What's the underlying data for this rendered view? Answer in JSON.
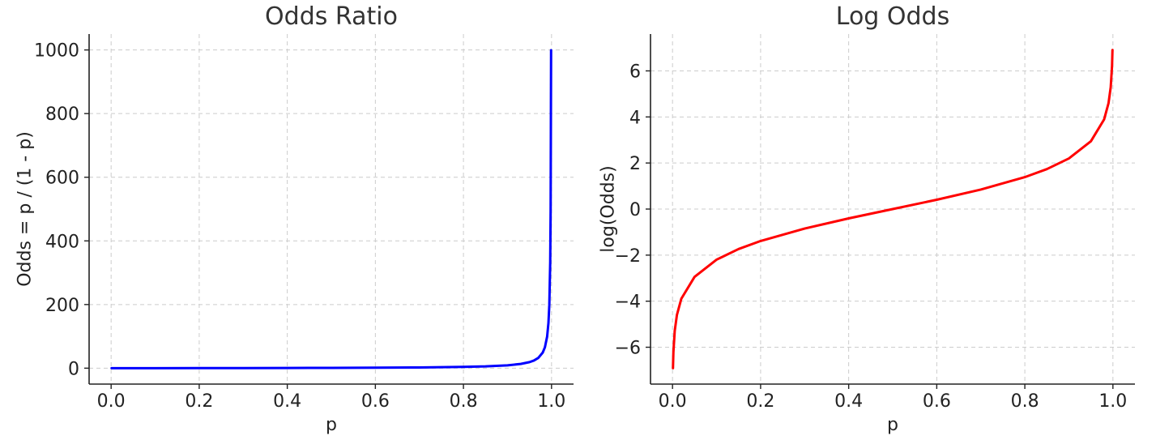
{
  "chart_data": [
    {
      "type": "line",
      "title": "Odds Ratio",
      "xlabel": "p",
      "ylabel": "Odds = p / (1 - p)",
      "xlim": [
        -0.05,
        1.05
      ],
      "ylim": [
        -50,
        1050
      ],
      "xticks": [
        0.0,
        0.2,
        0.4,
        0.6,
        0.8,
        1.0
      ],
      "xtick_labels": [
        "0.0",
        "0.2",
        "0.4",
        "0.6",
        "0.8",
        "1.0"
      ],
      "yticks": [
        0,
        200,
        400,
        600,
        800,
        1000
      ],
      "ytick_labels": [
        "0",
        "200",
        "400",
        "600",
        "800",
        "1000"
      ],
      "grid": true,
      "series": [
        {
          "color": "#0000ff",
          "x": [
            0.001,
            0.1,
            0.2,
            0.3,
            0.4,
            0.5,
            0.6,
            0.7,
            0.8,
            0.85,
            0.9,
            0.93,
            0.95,
            0.96,
            0.97,
            0.98,
            0.985,
            0.99,
            0.993,
            0.995,
            0.997,
            0.998,
            0.999
          ],
          "y": [
            0.001,
            0.111,
            0.25,
            0.429,
            0.667,
            1.0,
            1.5,
            2.333,
            4.0,
            5.667,
            9.0,
            13.29,
            19.0,
            24.0,
            32.33,
            49.0,
            65.67,
            99.0,
            141.86,
            199.0,
            332.33,
            499.0,
            999.0
          ]
        }
      ]
    },
    {
      "type": "line",
      "title": "Log Odds",
      "xlabel": "p",
      "ylabel": "log(Odds)",
      "xlim": [
        -0.05,
        1.05
      ],
      "ylim": [
        -7.6,
        7.6
      ],
      "xticks": [
        0.0,
        0.2,
        0.4,
        0.6,
        0.8,
        1.0
      ],
      "xtick_labels": [
        "0.0",
        "0.2",
        "0.4",
        "0.6",
        "0.8",
        "1.0"
      ],
      "yticks": [
        -6,
        -4,
        -2,
        0,
        2,
        4,
        6
      ],
      "ytick_labels": [
        "−6",
        "−4",
        "−2",
        "0",
        "2",
        "4",
        "6"
      ],
      "grid": true,
      "series": [
        {
          "color": "#ff0000",
          "x": [
            0.001,
            0.002,
            0.005,
            0.01,
            0.02,
            0.05,
            0.1,
            0.15,
            0.2,
            0.3,
            0.4,
            0.5,
            0.6,
            0.7,
            0.8,
            0.85,
            0.9,
            0.95,
            0.98,
            0.99,
            0.995,
            0.998,
            0.999
          ],
          "y": [
            -6.907,
            -6.213,
            -5.293,
            -4.595,
            -3.892,
            -2.944,
            -2.197,
            -1.735,
            -1.386,
            -0.847,
            -0.405,
            0.0,
            0.405,
            0.847,
            1.386,
            1.735,
            2.197,
            2.944,
            3.892,
            4.595,
            5.293,
            6.213,
            6.907
          ]
        }
      ]
    }
  ]
}
